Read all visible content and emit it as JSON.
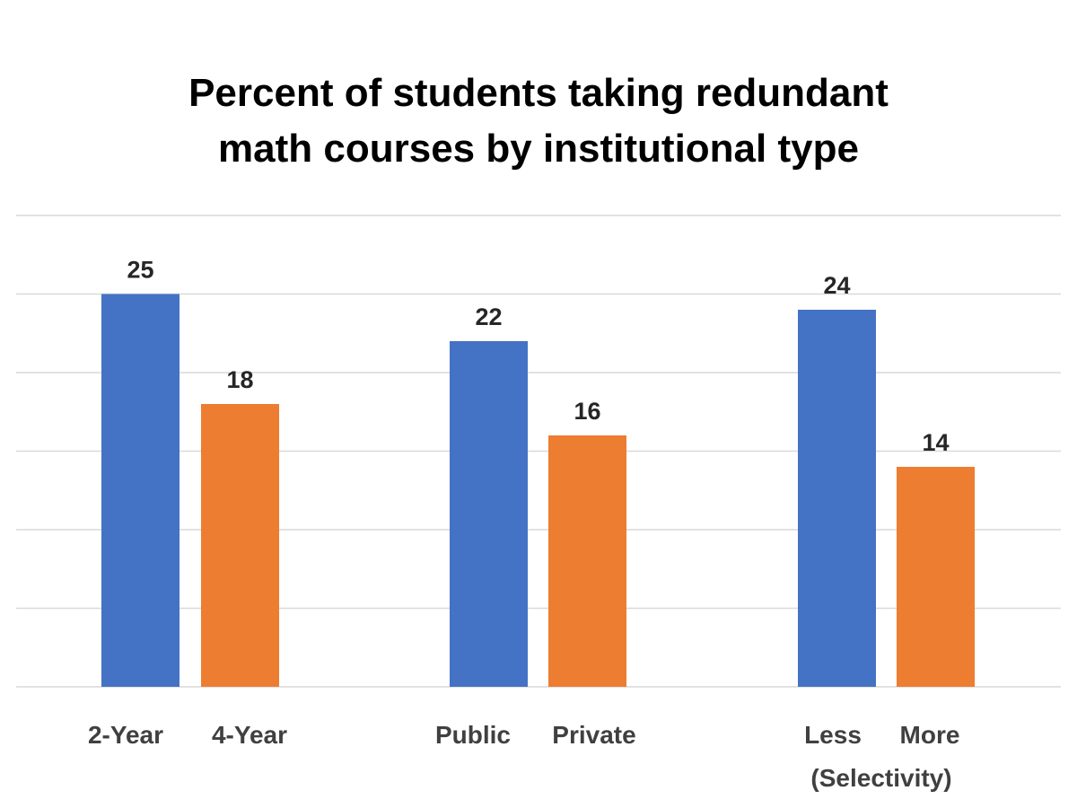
{
  "chart_data": {
    "type": "bar",
    "title": "Percent of students taking redundant math courses by institutional type",
    "title_lines": [
      "Percent of students taking redundant",
      "math courses by institutional type"
    ],
    "xlabel": "",
    "ylabel": "",
    "ylim": [
      0,
      30
    ],
    "y_grid_step": 5,
    "grid": true,
    "y_tick_labels_shown": false,
    "legend": "none",
    "groups": [
      {
        "categories": [
          "2-Year",
          "4-Year"
        ],
        "values": [
          25,
          18
        ],
        "note": ""
      },
      {
        "categories": [
          "Public",
          "Private"
        ],
        "values": [
          22,
          16
        ],
        "note": ""
      },
      {
        "categories": [
          "Less",
          "More"
        ],
        "values": [
          24,
          14
        ],
        "note": "(Selectivity)"
      }
    ],
    "data_labels": [
      "25",
      "18",
      "22",
      "16",
      "24",
      "14"
    ],
    "colors": {
      "first_bar": "#4472C4",
      "second_bar": "#ED7D31",
      "gridline": "#D9D9D9"
    }
  }
}
